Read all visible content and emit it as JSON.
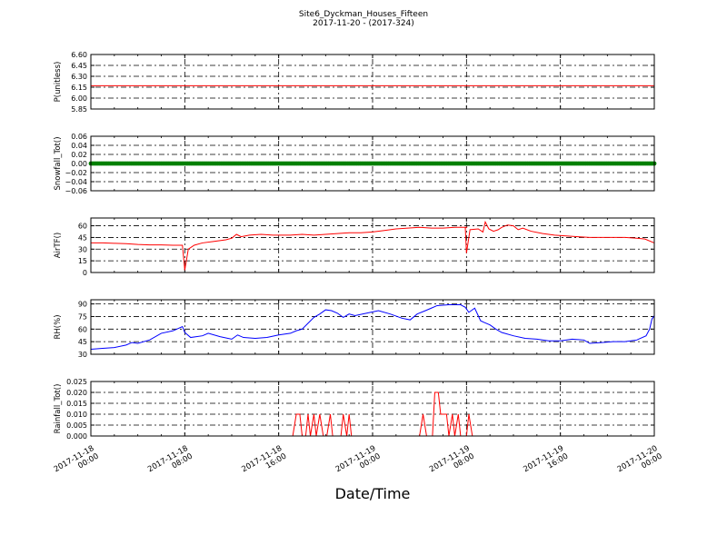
{
  "title": "Site6_Dyckman_Houses_Fifteen",
  "subtitle": "2017-11-20 - (2017-324)",
  "xlabel": "Date/Time",
  "colors": {
    "red": "#ff0000",
    "green": "#008000",
    "blue": "#0000ff"
  },
  "x_ticks": [
    {
      "line1": "2017-11-18",
      "line2": "00:00"
    },
    {
      "line1": "2017-11-18",
      "line2": "08:00"
    },
    {
      "line1": "2017-11-18",
      "line2": "16:00"
    },
    {
      "line1": "2017-11-19",
      "line2": "00:00"
    },
    {
      "line1": "2017-11-19",
      "line2": "08:00"
    },
    {
      "line1": "2017-11-19",
      "line2": "16:00"
    },
    {
      "line1": "2017-11-20",
      "line2": "00:00"
    }
  ],
  "chart_data": [
    {
      "type": "line",
      "ylabel": "P(unitless)",
      "ylim": [
        5.85,
        6.6
      ],
      "yticks": [
        "5.85",
        "6.00",
        "6.15",
        "6.30",
        "6.45",
        "6.60"
      ],
      "grid": true,
      "series": [
        {
          "color": "red",
          "points": [
            [
              0,
              6.17
            ],
            [
              48,
              6.17
            ]
          ]
        }
      ]
    },
    {
      "type": "scatter",
      "ylabel": "Snowfall_Tot()",
      "ylim": [
        -0.06,
        0.06
      ],
      "yticks": [
        "−0.06",
        "−0.04",
        "−0.02",
        "0.00",
        "0.02",
        "0.04",
        "0.06"
      ],
      "grid": true,
      "series": [
        {
          "color": "green",
          "points": [
            [
              0,
              0.0
            ],
            [
              48,
              0.0
            ]
          ]
        }
      ]
    },
    {
      "type": "line",
      "ylabel": "AirTF()",
      "ylim": [
        0,
        70
      ],
      "yticks": [
        "0",
        "15",
        "30",
        "45",
        "60"
      ],
      "grid": true,
      "series": [
        {
          "color": "red",
          "points": [
            [
              0,
              38
            ],
            [
              1,
              38
            ],
            [
              2,
              37.5
            ],
            [
              3,
              37
            ],
            [
              4,
              36
            ],
            [
              5,
              35.5
            ],
            [
              6,
              35.5
            ],
            [
              7,
              35
            ],
            [
              7.8,
              35
            ],
            [
              8.0,
              3
            ],
            [
              8.3,
              30
            ],
            [
              8.8,
              35
            ],
            [
              9.5,
              38
            ],
            [
              10.5,
              40
            ],
            [
              11.5,
              42
            ],
            [
              12,
              44
            ],
            [
              12.4,
              49
            ],
            [
              12.8,
              46
            ],
            [
              13.5,
              48
            ],
            [
              14.5,
              49
            ],
            [
              15.5,
              48
            ],
            [
              16,
              48
            ],
            [
              17,
              48
            ],
            [
              18,
              49
            ],
            [
              19,
              48
            ],
            [
              20,
              49
            ],
            [
              21,
              50
            ],
            [
              22,
              51
            ],
            [
              23,
              51
            ],
            [
              24,
              52
            ],
            [
              25,
              54
            ],
            [
              26,
              56
            ],
            [
              27,
              57
            ],
            [
              28,
              58
            ],
            [
              29,
              57
            ],
            [
              30,
              57
            ],
            [
              31,
              58
            ],
            [
              32,
              58
            ],
            [
              31.9,
              57
            ],
            [
              32.0,
              25
            ],
            [
              32.3,
              55
            ],
            [
              33,
              56
            ],
            [
              33.4,
              52
            ],
            [
              33.6,
              65
            ],
            [
              33.9,
              56
            ],
            [
              34.3,
              53
            ],
            [
              34.7,
              55
            ],
            [
              35,
              58
            ],
            [
              35.5,
              61
            ],
            [
              36,
              60
            ],
            [
              36.4,
              55
            ],
            [
              36.8,
              57
            ],
            [
              37.5,
              53
            ],
            [
              38.5,
              50
            ],
            [
              39.5,
              48
            ],
            [
              40.5,
              47
            ],
            [
              41.5,
              46
            ],
            [
              42.5,
              45
            ],
            [
              43.5,
              45
            ],
            [
              44.5,
              45
            ],
            [
              45.5,
              45
            ],
            [
              46.5,
              44
            ],
            [
              47.2,
              43
            ],
            [
              48,
              38
            ]
          ]
        }
      ]
    },
    {
      "type": "line",
      "ylabel": "RH(%)",
      "ylim": [
        30,
        95
      ],
      "yticks": [
        "30",
        "45",
        "60",
        "75",
        "90"
      ],
      "grid": true,
      "series": [
        {
          "color": "blue",
          "points": [
            [
              0,
              36
            ],
            [
              1,
              37
            ],
            [
              2,
              38
            ],
            [
              3,
              41
            ],
            [
              3.5,
              44
            ],
            [
              4,
              43
            ],
            [
              5,
              47
            ],
            [
              6,
              55
            ],
            [
              7,
              58
            ],
            [
              7.8,
              63
            ],
            [
              8.0,
              56
            ],
            [
              8.5,
              50
            ],
            [
              9.5,
              52
            ],
            [
              10,
              55
            ],
            [
              11,
              51
            ],
            [
              12,
              48
            ],
            [
              12.5,
              53
            ],
            [
              13,
              50
            ],
            [
              14,
              49
            ],
            [
              15,
              50
            ],
            [
              16,
              53
            ],
            [
              17,
              55
            ],
            [
              17.5,
              58
            ],
            [
              18,
              60
            ],
            [
              18.5,
              67
            ],
            [
              19,
              74
            ],
            [
              19.5,
              78
            ],
            [
              20,
              83
            ],
            [
              20.5,
              82
            ],
            [
              21,
              79
            ],
            [
              21.5,
              74
            ],
            [
              22,
              78
            ],
            [
              22.5,
              76
            ],
            [
              23.5,
              79
            ],
            [
              24.5,
              82
            ],
            [
              25.5,
              78
            ],
            [
              26.5,
              73
            ],
            [
              27.2,
              71
            ],
            [
              27.8,
              78
            ],
            [
              28.5,
              82
            ],
            [
              29,
              85
            ],
            [
              29.5,
              88
            ],
            [
              30.5,
              89
            ],
            [
              31.5,
              89
            ],
            [
              31.9,
              86
            ],
            [
              32.2,
              80
            ],
            [
              32.7,
              85
            ],
            [
              33.2,
              70
            ],
            [
              33.5,
              68
            ],
            [
              34,
              65
            ],
            [
              34.5,
              60
            ],
            [
              35,
              56
            ],
            [
              36,
              52
            ],
            [
              37,
              49
            ],
            [
              38,
              48
            ],
            [
              39,
              46
            ],
            [
              40,
              46
            ],
            [
              41,
              48
            ],
            [
              42,
              47
            ],
            [
              42.5,
              43
            ],
            [
              43.5,
              44
            ],
            [
              44.5,
              45
            ],
            [
              45.5,
              45
            ],
            [
              46.5,
              47
            ],
            [
              47.3,
              52
            ],
            [
              47.6,
              60
            ],
            [
              47.8,
              72
            ],
            [
              48,
              76
            ]
          ]
        }
      ]
    },
    {
      "type": "line",
      "ylabel": "Rainfall_Tot()",
      "ylim": [
        0,
        0.025
      ],
      "yticks": [
        "0.000",
        "0.005",
        "0.010",
        "0.015",
        "0.020",
        "0.025"
      ],
      "grid": true,
      "series": [
        {
          "color": "red",
          "points": [
            [
              0,
              0
            ],
            [
              17.2,
              0
            ],
            [
              17.5,
              0.01
            ],
            [
              17.8,
              0.01
            ],
            [
              18.0,
              0
            ],
            [
              18.3,
              0
            ],
            [
              18.5,
              0.01
            ],
            [
              18.7,
              0
            ],
            [
              19.0,
              0.01
            ],
            [
              19.2,
              0
            ],
            [
              19.5,
              0.01
            ],
            [
              19.8,
              0
            ],
            [
              20.1,
              0
            ],
            [
              20.4,
              0.01
            ],
            [
              20.6,
              0
            ],
            [
              21.3,
              0
            ],
            [
              21.5,
              0.01
            ],
            [
              21.8,
              0
            ],
            [
              22.0,
              0.01
            ],
            [
              22.2,
              0
            ],
            [
              28.0,
              0
            ],
            [
              28.3,
              0.01
            ],
            [
              28.6,
              0
            ],
            [
              29.1,
              0
            ],
            [
              29.3,
              0.02
            ],
            [
              29.6,
              0.02
            ],
            [
              29.8,
              0.01
            ],
            [
              30.3,
              0.01
            ],
            [
              30.5,
              0
            ],
            [
              30.8,
              0.01
            ],
            [
              31.0,
              0
            ],
            [
              31.3,
              0.01
            ],
            [
              31.5,
              0
            ],
            [
              32.0,
              0
            ],
            [
              32.2,
              0.01
            ],
            [
              32.5,
              0
            ],
            [
              48,
              0
            ]
          ]
        }
      ]
    }
  ]
}
